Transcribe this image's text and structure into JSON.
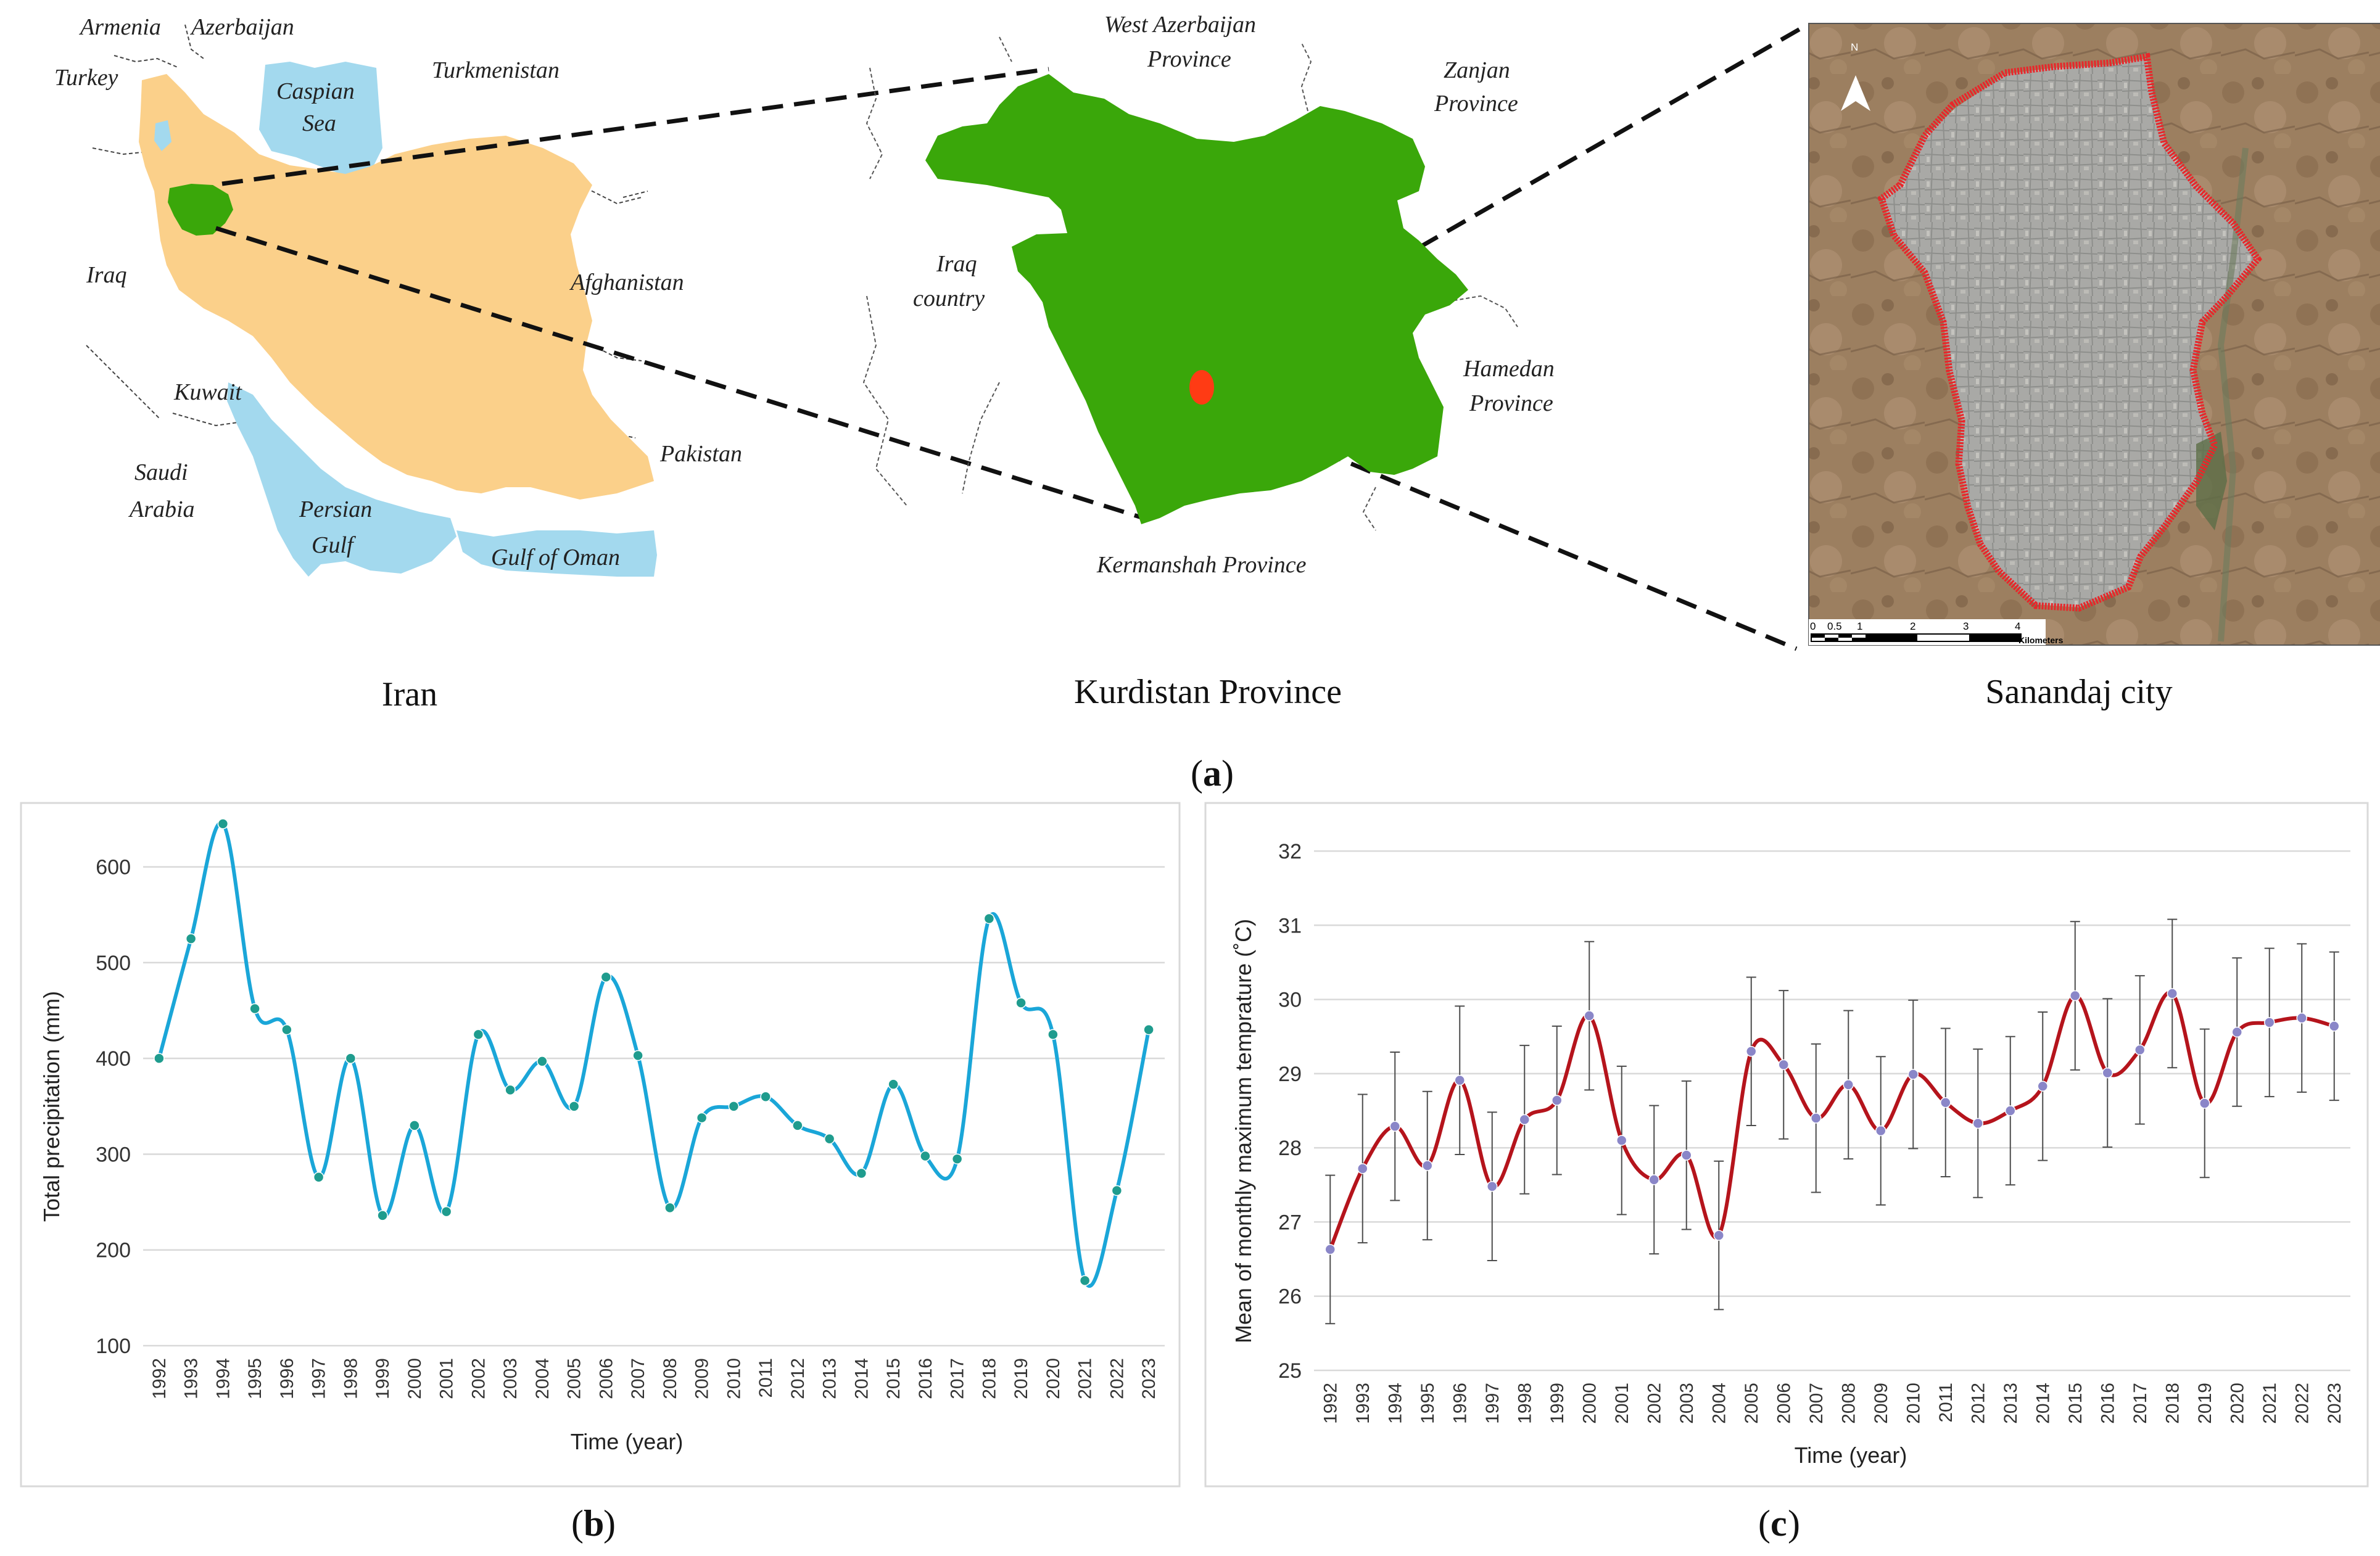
{
  "figure": {
    "map_panel": {
      "letter": "a",
      "iran": {
        "caption": "Iran",
        "labels": {
          "armenia": "Armenia",
          "azerbaijan": "Azerbaijan",
          "turkey": "Turkey",
          "turkmenistan": "Turkmenistan",
          "caspian_1": "Caspian",
          "caspian_2": "Sea",
          "iraq": "Iraq",
          "afghanistan": "Afghanistan",
          "kuwait": "Kuwait",
          "saudi_1": "Saudi",
          "saudi_2": "Arabia",
          "persian_1": "Persian",
          "persian_2": "Gulf",
          "pakistan": "Pakistan",
          "oman": "Gulf of Oman"
        }
      },
      "kurdistan": {
        "caption": "Kurdistan Province",
        "labels": {
          "west_az_1": "West Azerbaijan",
          "west_az_2": "Province",
          "zanjan_1": "Zanjan",
          "zanjan_2": "Province",
          "iraq_1": "Iraq",
          "iraq_2": "country",
          "hamedan_1": "Hamedan",
          "hamedan_2": "Province",
          "kermanshah": "Kermanshah Province"
        }
      },
      "sanandaj": {
        "caption": "Sanandaj city",
        "north": "N",
        "scale_ticks": [
          "0",
          "0.5",
          "1",
          "2",
          "3",
          "4"
        ],
        "scale_unit": "Kilometers"
      },
      "colors": {
        "iran_fill": "#fbd08a",
        "water": "#a3d9ee",
        "kurdistan_fill": "#3aa70a",
        "city_marker": "#ff3b14",
        "city_boundary": "#e8262a"
      }
    },
    "chart_b_letter": "b",
    "chart_c_letter": "c"
  },
  "chart_data": [
    {
      "id": "b",
      "type": "line",
      "xlabel": "Time (year)",
      "ylabel": "Total precipitation (mm)",
      "ylim": [
        100,
        650
      ],
      "yticks": [
        100,
        200,
        300,
        400,
        500,
        600
      ],
      "grid": true,
      "color": "#1aa6d8",
      "marker_color": "#1f9c8e",
      "categories": [
        "1992",
        "1993",
        "1994",
        "1995",
        "1996",
        "1997",
        "1998",
        "1999",
        "2000",
        "2001",
        "2002",
        "2003",
        "2004",
        "2005",
        "2006",
        "2007",
        "2008",
        "2009",
        "2010",
        "2011",
        "2012",
        "2013",
        "2014",
        "2015",
        "2016",
        "2017",
        "2018",
        "2019",
        "2020",
        "2021",
        "2022",
        "2023"
      ],
      "series": [
        {
          "values": [
            400,
            525,
            645,
            452,
            430,
            276,
            400,
            236,
            330,
            240,
            425,
            367,
            397,
            350,
            485,
            403,
            244,
            338,
            350,
            360,
            330,
            316,
            280,
            373,
            298,
            295,
            546,
            458,
            425,
            168,
            262,
            430
          ]
        }
      ]
    },
    {
      "id": "c",
      "type": "line",
      "xlabel": "Time (year)",
      "ylabel": "Mean of monthly maximum temprature (˚C)",
      "ylim": [
        25,
        32
      ],
      "yticks": [
        25,
        26,
        27,
        28,
        29,
        30,
        31,
        32
      ],
      "grid": true,
      "error_bar": 1.0,
      "color": "#b5141c",
      "marker_color": "#8a86c8",
      "categories": [
        "1992",
        "1993",
        "1994",
        "1995",
        "1996",
        "1997",
        "1998",
        "1999",
        "2000",
        "2001",
        "2002",
        "2003",
        "2004",
        "2005",
        "2006",
        "2007",
        "2008",
        "2009",
        "2010",
        "2011",
        "2012",
        "2013",
        "2014",
        "2015",
        "2016",
        "2017",
        "2018",
        "2019",
        "2020",
        "2021",
        "2022",
        "2023"
      ],
      "series": [
        {
          "values": [
            26.63,
            27.72,
            28.29,
            27.76,
            28.91,
            27.48,
            28.38,
            28.64,
            29.78,
            28.1,
            27.57,
            27.9,
            26.82,
            29.3,
            29.12,
            28.4,
            28.85,
            28.23,
            28.99,
            28.61,
            28.33,
            28.5,
            28.83,
            30.05,
            29.01,
            29.32,
            30.08,
            28.6,
            29.56,
            29.69,
            29.75,
            29.64
          ]
        }
      ]
    }
  ]
}
